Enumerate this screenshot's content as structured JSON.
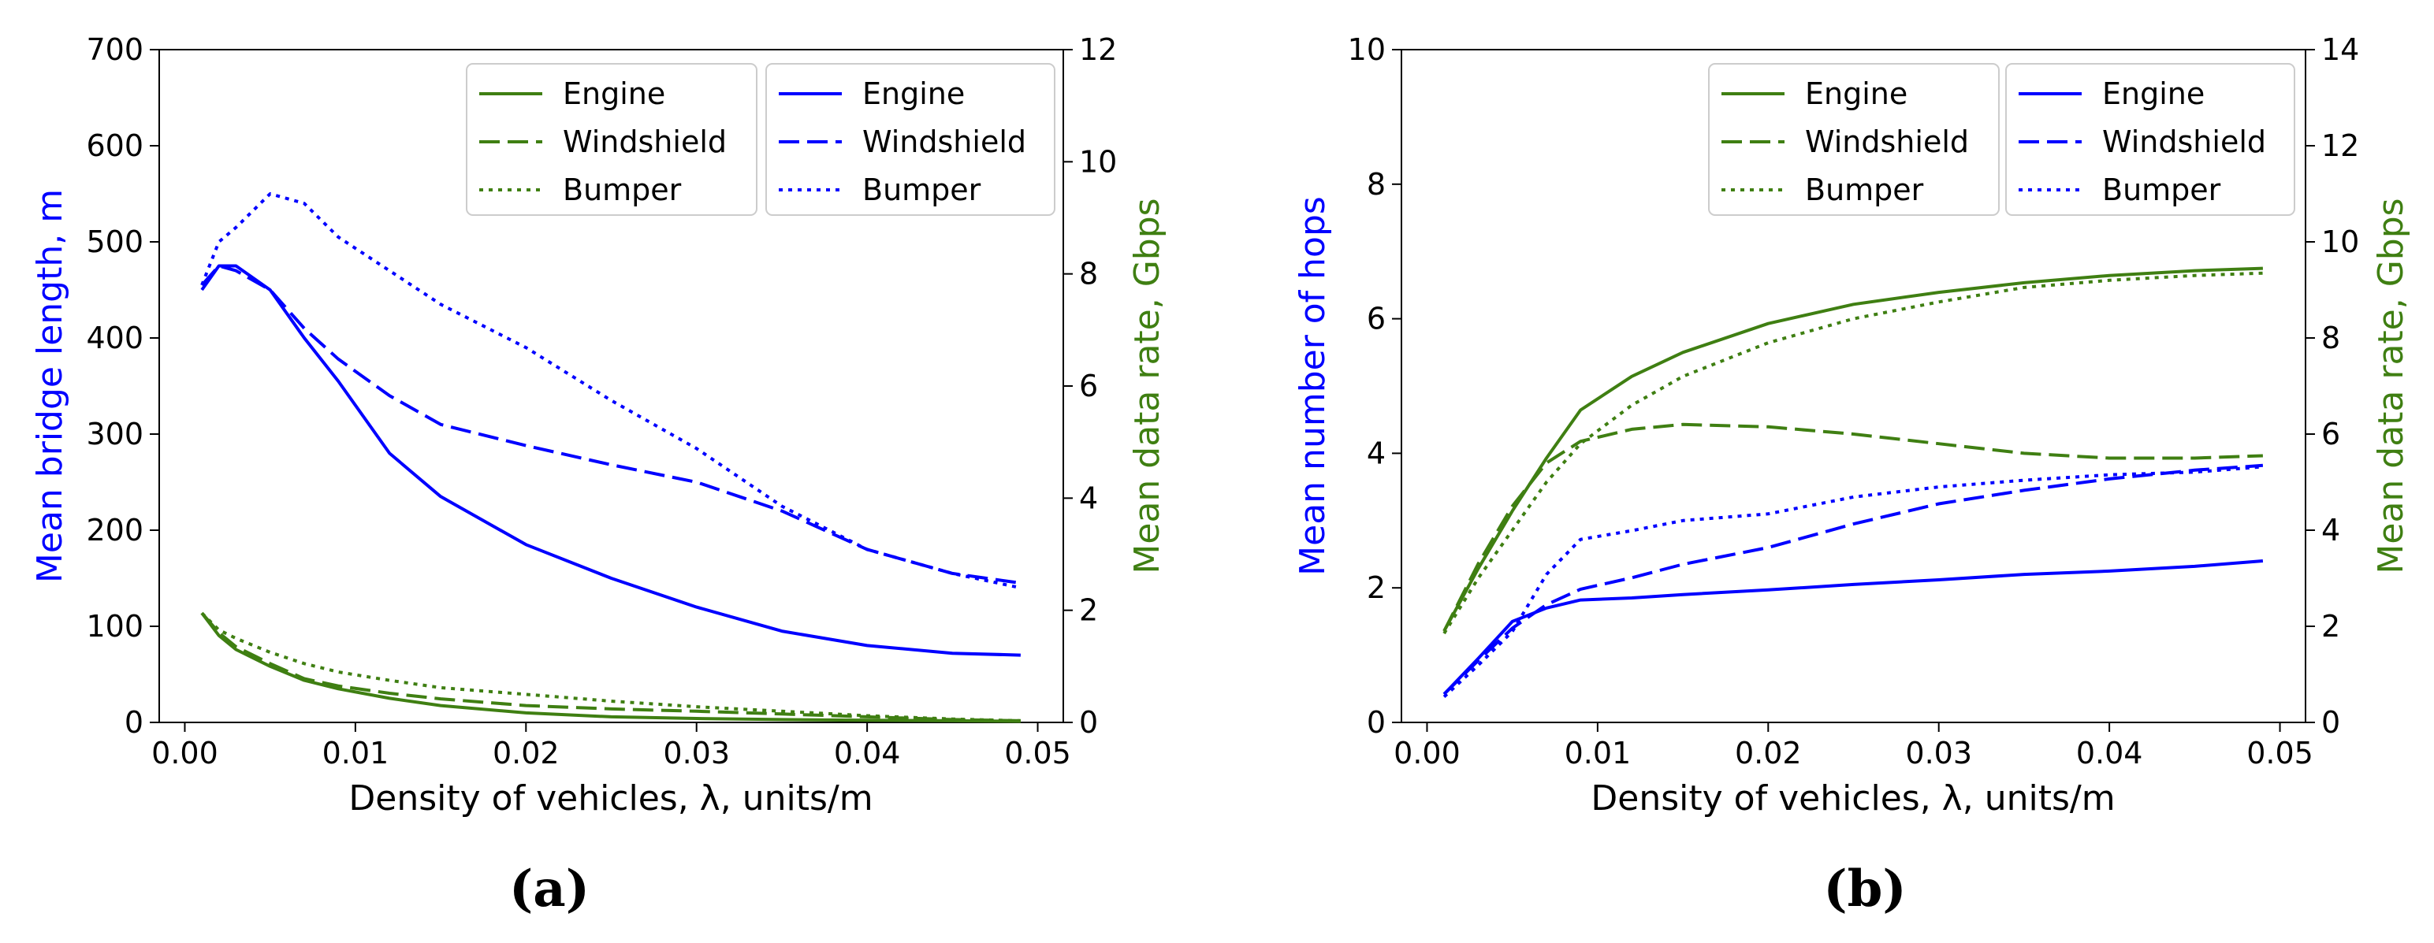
{
  "colors": {
    "left_axis": "#0000ff",
    "right_axis": "#3f7f12",
    "engine_green": "#3f7f12",
    "blue": "#0000ff"
  },
  "chart_data": [
    {
      "type": "line",
      "caption": "(a)",
      "xlabel": "Density of vehicles, λ, units/m",
      "ylabel_left": "Mean bridge length, m",
      "ylabel_right": "Mean data rate, Gbps",
      "xlim": [
        -0.0015,
        0.0515
      ],
      "ylim_left": [
        0,
        700
      ],
      "ylim_right": [
        0,
        12
      ],
      "x_ticks": [
        "0.00",
        "0.01",
        "0.02",
        "0.03",
        "0.04",
        "0.05"
      ],
      "y_ticks_left": [
        "0",
        "100",
        "200",
        "300",
        "400",
        "500",
        "600",
        "700"
      ],
      "y_ticks_right": [
        "0",
        "2",
        "4",
        "6",
        "8",
        "10",
        "12"
      ],
      "legend_left": [
        "Engine",
        "Windshield",
        "Bumper"
      ],
      "legend_right": [
        "Engine",
        "Windshield",
        "Bumper"
      ],
      "legend_placement": "top-right",
      "x": [
        0.001,
        0.002,
        0.003,
        0.005,
        0.007,
        0.009,
        0.012,
        0.015,
        0.02,
        0.025,
        0.03,
        0.035,
        0.04,
        0.045,
        0.049
      ],
      "series": [
        {
          "name": "Engine",
          "axis": "left",
          "color": "blue",
          "dash": "solid",
          "values": [
            450,
            475,
            475,
            450,
            400,
            355,
            280,
            235,
            185,
            150,
            120,
            95,
            80,
            72,
            70
          ]
        },
        {
          "name": "Windshield",
          "axis": "left",
          "color": "blue",
          "dash": "dashed",
          "values": [
            455,
            475,
            470,
            450,
            410,
            378,
            340,
            310,
            288,
            268,
            250,
            220,
            180,
            155,
            145
          ]
        },
        {
          "name": "Bumper",
          "axis": "left",
          "color": "blue",
          "dash": "dotted",
          "values": [
            455,
            500,
            515,
            550,
            540,
            505,
            470,
            435,
            390,
            335,
            285,
            225,
            180,
            155,
            140
          ]
        },
        {
          "name": "Engine",
          "axis": "right",
          "color": "green",
          "dash": "solid",
          "values": [
            1.95,
            1.55,
            1.3,
            1.0,
            0.75,
            0.6,
            0.43,
            0.3,
            0.17,
            0.1,
            0.07,
            0.05,
            0.04,
            0.03,
            0.02
          ]
        },
        {
          "name": "Windshield",
          "axis": "right",
          "color": "green",
          "dash": "dashed",
          "values": [
            1.95,
            1.6,
            1.35,
            1.05,
            0.78,
            0.65,
            0.52,
            0.42,
            0.3,
            0.24,
            0.2,
            0.15,
            0.1,
            0.05,
            0.03
          ]
        },
        {
          "name": "Bumper",
          "axis": "right",
          "color": "green",
          "dash": "dotted",
          "values": [
            1.95,
            1.65,
            1.5,
            1.25,
            1.05,
            0.9,
            0.75,
            0.62,
            0.5,
            0.38,
            0.28,
            0.2,
            0.12,
            0.06,
            0.03
          ]
        }
      ]
    },
    {
      "type": "line",
      "caption": "(b)",
      "xlabel": "Density of vehicles, λ, units/m",
      "ylabel_left": "Mean number of hops",
      "ylabel_right": "Mean data rate, Gbps",
      "xlim": [
        -0.0015,
        0.0515
      ],
      "ylim_left": [
        0,
        10
      ],
      "ylim_right": [
        0,
        14
      ],
      "x_ticks": [
        "0.00",
        "0.01",
        "0.02",
        "0.03",
        "0.04",
        "0.05"
      ],
      "y_ticks_left": [
        "0",
        "2",
        "4",
        "6",
        "8",
        "10"
      ],
      "y_ticks_right": [
        "0",
        "2",
        "4",
        "6",
        "8",
        "10",
        "12",
        "14"
      ],
      "legend_left": [
        "Engine",
        "Windshield",
        "Bumper"
      ],
      "legend_right": [
        "Engine",
        "Windshield",
        "Bumper"
      ],
      "legend_placement": "top-right",
      "x": [
        0.001,
        0.003,
        0.005,
        0.007,
        0.009,
        0.012,
        0.015,
        0.02,
        0.025,
        0.03,
        0.035,
        0.04,
        0.045,
        0.049
      ],
      "series": [
        {
          "name": "Engine",
          "axis": "right",
          "color": "green",
          "dash": "solid",
          "values": [
            1.9,
            3.2,
            4.4,
            5.5,
            6.5,
            7.2,
            7.7,
            8.3,
            8.7,
            8.95,
            9.15,
            9.3,
            9.4,
            9.45
          ]
        },
        {
          "name": "Windshield",
          "axis": "right",
          "color": "green",
          "dash": "dashed",
          "values": [
            1.9,
            3.3,
            4.5,
            5.4,
            5.85,
            6.1,
            6.2,
            6.15,
            6.0,
            5.8,
            5.6,
            5.5,
            5.5,
            5.55
          ]
        },
        {
          "name": "Bumper",
          "axis": "right",
          "color": "green",
          "dash": "dotted",
          "values": [
            1.85,
            3.0,
            4.0,
            5.0,
            5.8,
            6.6,
            7.2,
            7.9,
            8.4,
            8.75,
            9.05,
            9.2,
            9.3,
            9.35
          ]
        },
        {
          "name": "Engine",
          "axis": "left",
          "color": "blue",
          "dash": "solid",
          "values": [
            0.42,
            0.95,
            1.5,
            1.7,
            1.82,
            1.85,
            1.9,
            1.97,
            2.05,
            2.12,
            2.2,
            2.25,
            2.32,
            2.4
          ]
        },
        {
          "name": "Windshield",
          "axis": "left",
          "color": "blue",
          "dash": "dashed",
          "values": [
            0.42,
            0.92,
            1.4,
            1.75,
            1.98,
            2.15,
            2.35,
            2.6,
            2.95,
            3.25,
            3.45,
            3.62,
            3.75,
            3.82
          ]
        },
        {
          "name": "Bumper",
          "axis": "left",
          "color": "blue",
          "dash": "dotted",
          "values": [
            0.38,
            0.85,
            1.35,
            2.2,
            2.72,
            2.85,
            3.0,
            3.1,
            3.35,
            3.5,
            3.6,
            3.68,
            3.72,
            3.8
          ]
        }
      ]
    }
  ]
}
